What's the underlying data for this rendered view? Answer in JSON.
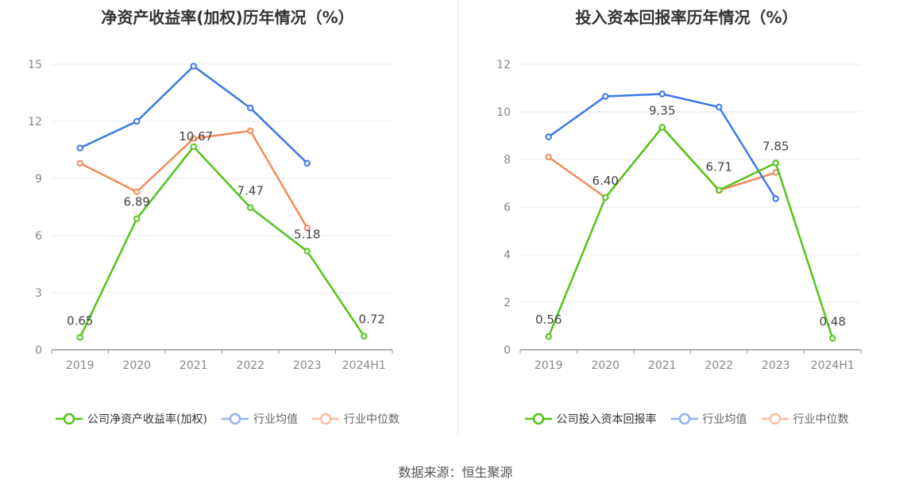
{
  "source": "数据来源：恒生聚源",
  "chart_data": [
    {
      "type": "line",
      "title": "净资产收益率(加权)历年情况（%）",
      "categories": [
        "2019",
        "2020",
        "2021",
        "2022",
        "2023",
        "2024H1"
      ],
      "ylim": [
        0,
        15
      ],
      "yticks": [
        0,
        3,
        6,
        9,
        12,
        15
      ],
      "grid": true,
      "legend_position": "bottom",
      "series": [
        {
          "name": "公司净资产收益率(加权)",
          "color": "#52c41a",
          "values": [
            0.65,
            6.89,
            10.67,
            7.47,
            5.18,
            0.72
          ],
          "labels": [
            "0.65",
            "6.89",
            "10.67",
            "7.47",
            "5.18",
            "0.72"
          ]
        },
        {
          "name": "行业均值",
          "color": "#3b78e7",
          "values": [
            10.6,
            12.0,
            14.9,
            12.7,
            9.8,
            null
          ]
        },
        {
          "name": "行业中位数",
          "color": "#f28b5c",
          "values": [
            9.8,
            8.3,
            11.1,
            11.5,
            6.4,
            null
          ]
        }
      ]
    },
    {
      "type": "line",
      "title": "投入资本回报率历年情况（%）",
      "categories": [
        "2019",
        "2020",
        "2021",
        "2022",
        "2023",
        "2024H1"
      ],
      "ylim": [
        0,
        12
      ],
      "yticks": [
        0,
        2,
        4,
        6,
        8,
        10,
        12
      ],
      "grid": true,
      "legend_position": "bottom",
      "series": [
        {
          "name": "公司投入资本回报率",
          "color": "#52c41a",
          "values": [
            0.56,
            6.4,
            9.35,
            6.71,
            7.85,
            0.48
          ],
          "labels": [
            "0.56",
            "6.40",
            "9.35",
            "6.71",
            "7.85",
            "0.48"
          ]
        },
        {
          "name": "行业均值",
          "color": "#3b78e7",
          "values": [
            8.95,
            10.65,
            10.75,
            10.2,
            6.35,
            null
          ]
        },
        {
          "name": "行业中位数",
          "color": "#f28b5c",
          "values": [
            8.1,
            6.4,
            9.35,
            6.7,
            7.45,
            null
          ]
        }
      ]
    }
  ]
}
